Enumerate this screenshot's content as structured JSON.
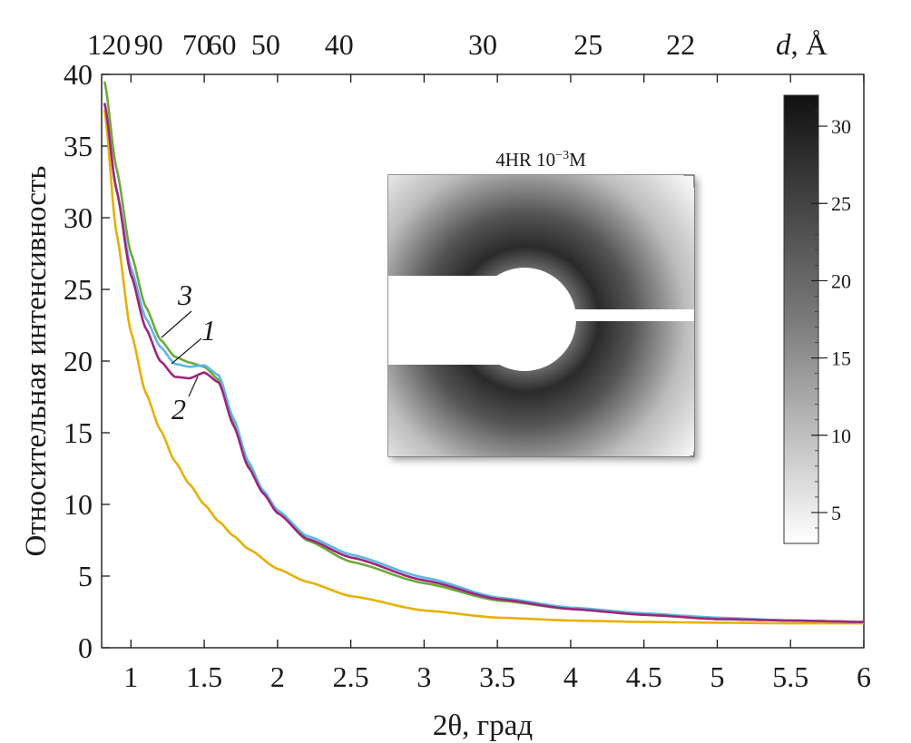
{
  "chart_data": {
    "type": "line",
    "xlabel": "2θ, град",
    "ylabel": "Относительная интенсивность",
    "xlim": [
      0.8,
      6
    ],
    "ylim": [
      0,
      40
    ],
    "x_ticks": [
      "1",
      "1.5",
      "2",
      "2.5",
      "3",
      "3.5",
      "4",
      "4.5",
      "5",
      "5.5",
      "6"
    ],
    "y_ticks": [
      "0",
      "5",
      "10",
      "15",
      "20",
      "25",
      "30",
      "35",
      "40"
    ],
    "top_axis": {
      "label_symbol": "d",
      "label_unit": ", Å",
      "ticks": [
        {
          "label": "120",
          "x": 0.85
        },
        {
          "label": "90",
          "x": 1.12
        },
        {
          "label": "70",
          "x": 1.45
        },
        {
          "label": "60",
          "x": 1.62
        },
        {
          "label": "50",
          "x": 1.92
        },
        {
          "label": "40",
          "x": 2.42
        },
        {
          "label": "30",
          "x": 3.4
        },
        {
          "label": "25",
          "x": 4.12
        },
        {
          "label": "22",
          "x": 4.75
        }
      ]
    },
    "series": [
      {
        "name": "1",
        "color": "#5bb8e8",
        "x": [
          0.82,
          0.9,
          1.0,
          1.1,
          1.2,
          1.3,
          1.4,
          1.5,
          1.6,
          1.7,
          1.8,
          1.9,
          2.0,
          2.2,
          2.5,
          3.0,
          3.5,
          4.0,
          4.5,
          5.0,
          5.5,
          6.0
        ],
        "y": [
          38.0,
          32.0,
          26.5,
          23.0,
          21.0,
          19.8,
          19.6,
          19.7,
          19.0,
          16.0,
          13.0,
          11.0,
          9.6,
          7.8,
          6.5,
          4.9,
          3.5,
          2.8,
          2.4,
          2.1,
          1.9,
          1.8
        ]
      },
      {
        "name": "2",
        "color": "#a0257a",
        "x": [
          0.82,
          0.9,
          1.0,
          1.1,
          1.2,
          1.3,
          1.4,
          1.5,
          1.6,
          1.7,
          1.8,
          1.9,
          2.0,
          2.2,
          2.5,
          3.0,
          3.5,
          4.0,
          4.5,
          5.0,
          5.5,
          6.0
        ],
        "y": [
          38.0,
          32.0,
          26.0,
          22.3,
          20.0,
          18.9,
          18.8,
          19.2,
          18.5,
          15.5,
          12.6,
          10.8,
          9.4,
          7.6,
          6.3,
          4.7,
          3.4,
          2.7,
          2.3,
          2.0,
          1.9,
          1.8
        ]
      },
      {
        "name": "3",
        "color": "#6fa83a",
        "x": [
          0.82,
          0.9,
          1.0,
          1.1,
          1.2,
          1.3,
          1.4,
          1.5,
          1.6,
          1.7,
          1.8,
          1.9,
          2.0,
          2.2,
          2.5,
          3.0,
          3.5,
          4.0,
          4.5,
          5.0,
          5.5,
          6.0
        ],
        "y": [
          39.5,
          33.5,
          27.5,
          23.8,
          21.5,
          20.3,
          19.9,
          19.6,
          18.7,
          15.8,
          12.8,
          10.9,
          9.5,
          7.5,
          6.0,
          4.5,
          3.3,
          2.7,
          2.3,
          2.0,
          1.9,
          1.8
        ]
      },
      {
        "name": "",
        "color": "#e8b000",
        "x": [
          0.82,
          0.9,
          1.0,
          1.1,
          1.2,
          1.3,
          1.4,
          1.5,
          1.6,
          1.7,
          1.8,
          2.0,
          2.2,
          2.5,
          3.0,
          3.5,
          4.0,
          4.5,
          5.0,
          5.5,
          6.0
        ],
        "y": [
          37.5,
          29.0,
          22.0,
          17.8,
          15.2,
          13.0,
          11.4,
          10.0,
          8.8,
          7.8,
          6.9,
          5.5,
          4.6,
          3.6,
          2.6,
          2.1,
          1.9,
          1.8,
          1.75,
          1.7,
          1.7
        ]
      }
    ],
    "curve_labels": [
      "3",
      "1",
      "2"
    ],
    "inset": {
      "title": "4HR 10",
      "title_sup": "−3",
      "title_suffix": "M"
    },
    "colorbar": {
      "min": 3,
      "max": 32,
      "ticks": [
        "5",
        "10",
        "15",
        "20",
        "25",
        "30"
      ],
      "tick_values": [
        5,
        10,
        15,
        20,
        25,
        30
      ]
    },
    "grid": false
  }
}
